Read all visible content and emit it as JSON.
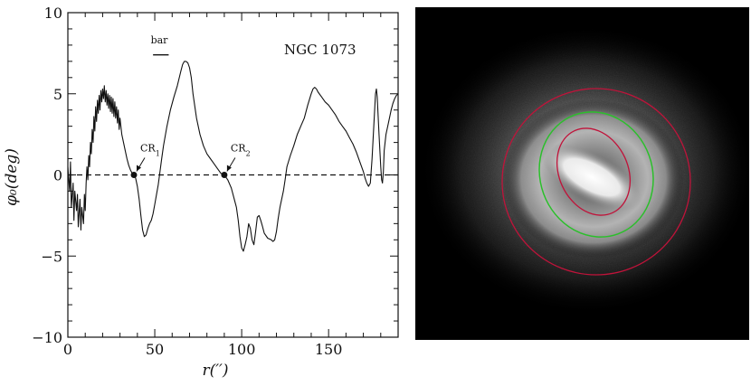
{
  "chart_data": [
    {
      "type": "line",
      "title": "NGC 1073",
      "xlabel": "r(′′)",
      "ylabel": "φ₀(deg)",
      "xlim": [
        0,
        190
      ],
      "ylim": [
        -10,
        10
      ],
      "x_ticks": [
        0,
        50,
        100,
        150
      ],
      "y_ticks": [
        -10,
        -5,
        0,
        5,
        10
      ],
      "x_tick_labels": [
        "0",
        "50",
        "100",
        "150"
      ],
      "y_tick_labels": [
        "−10",
        "−5",
        "0",
        "5",
        "10"
      ],
      "reference_line": {
        "y": 0,
        "style": "dashed"
      },
      "bar_marker": {
        "label": "bar",
        "x_range": [
          49,
          58
        ],
        "y": 7.4
      },
      "annotations": [
        {
          "label": "CR1",
          "main": "CR",
          "sub": "1",
          "x": 38,
          "y": 0
        },
        {
          "label": "CR2",
          "main": "CR",
          "sub": "2",
          "x": 90,
          "y": 0
        }
      ],
      "series": [
        {
          "points": [
            [
              0,
              0.5
            ],
            [
              1,
              -1
            ],
            [
              1.5,
              0.8
            ],
            [
              2,
              -2
            ],
            [
              3,
              -0.5
            ],
            [
              3.5,
              -2.8
            ],
            [
              4,
              -1
            ],
            [
              5,
              -2.2
            ],
            [
              5.5,
              -1.2
            ],
            [
              6,
              -3.2
            ],
            [
              7,
              -1.5
            ],
            [
              7.5,
              -3.4
            ],
            [
              8,
              -2
            ],
            [
              9,
              -3
            ],
            [
              9.5,
              -1.2
            ],
            [
              10,
              -2.2
            ],
            [
              10.5,
              -0.5
            ],
            [
              11,
              0.5
            ],
            [
              11.5,
              -0.3
            ],
            [
              12,
              1.2
            ],
            [
              12.5,
              0.5
            ],
            [
              13,
              2
            ],
            [
              13.5,
              1.3
            ],
            [
              14,
              2.8
            ],
            [
              14.5,
              2
            ],
            [
              15,
              3.6
            ],
            [
              15.5,
              2.7
            ],
            [
              16,
              4.2
            ],
            [
              16.5,
              3.3
            ],
            [
              17,
              4.6
            ],
            [
              17.5,
              3.8
            ],
            [
              18,
              4.9
            ],
            [
              18.5,
              4
            ],
            [
              19,
              5.2
            ],
            [
              19.5,
              4.5
            ],
            [
              20,
              5.3
            ],
            [
              20.5,
              4.7
            ],
            [
              21,
              5.5
            ],
            [
              21.5,
              4.5
            ],
            [
              22,
              5.2
            ],
            [
              22.5,
              4.3
            ],
            [
              23,
              5.0
            ],
            [
              23.5,
              4.1
            ],
            [
              24,
              4.9
            ],
            [
              24.5,
              3.9
            ],
            [
              25,
              4.8
            ],
            [
              25.5,
              3.8
            ],
            [
              26,
              4.7
            ],
            [
              26.5,
              3.6
            ],
            [
              27,
              4.5
            ],
            [
              27.5,
              3.5
            ],
            [
              28,
              4.2
            ],
            [
              28.5,
              3.2
            ],
            [
              29,
              4.0
            ],
            [
              29.5,
              2.8
            ],
            [
              30,
              3.5
            ],
            [
              31,
              2.5
            ],
            [
              32,
              2.0
            ],
            [
              33,
              1.5
            ],
            [
              34,
              1.0
            ],
            [
              35,
              0.6
            ],
            [
              36,
              0.3
            ],
            [
              37,
              0.1
            ],
            [
              38,
              0.0
            ],
            [
              39,
              -0.2
            ],
            [
              40,
              -0.7
            ],
            [
              41,
              -1.5
            ],
            [
              42,
              -2.5
            ],
            [
              43,
              -3.4
            ],
            [
              44,
              -3.8
            ],
            [
              45,
              -3.7
            ],
            [
              46,
              -3.3
            ],
            [
              47,
              -3.0
            ],
            [
              48,
              -2.8
            ],
            [
              49,
              -2.4
            ],
            [
              50,
              -1.8
            ],
            [
              51,
              -1.2
            ],
            [
              52,
              -0.6
            ],
            [
              53,
              0.2
            ],
            [
              54,
              1.0
            ],
            [
              55,
              1.8
            ],
            [
              57,
              3.0
            ],
            [
              59,
              4.0
            ],
            [
              61,
              4.8
            ],
            [
              63,
              5.5
            ],
            [
              65,
              6.4
            ],
            [
              66,
              6.8
            ],
            [
              67,
              7.0
            ],
            [
              68,
              7.0
            ],
            [
              69,
              6.9
            ],
            [
              70,
              6.6
            ],
            [
              71,
              6.0
            ],
            [
              72,
              5.0
            ],
            [
              74,
              3.5
            ],
            [
              76,
              2.5
            ],
            [
              78,
              1.8
            ],
            [
              80,
              1.3
            ],
            [
              82,
              1.0
            ],
            [
              84,
              0.7
            ],
            [
              86,
              0.4
            ],
            [
              88,
              0.1
            ],
            [
              90,
              0.0
            ],
            [
              92,
              -0.3
            ],
            [
              94,
              -0.8
            ],
            [
              95,
              -1.2
            ],
            [
              96,
              -1.6
            ],
            [
              97,
              -2.0
            ],
            [
              98,
              -2.8
            ],
            [
              99,
              -3.8
            ],
            [
              100,
              -4.5
            ],
            [
              101,
              -4.7
            ],
            [
              102,
              -4.3
            ],
            [
              103,
              -3.8
            ],
            [
              104,
              -3.0
            ],
            [
              105,
              -3.3
            ],
            [
              106,
              -4.0
            ],
            [
              107,
              -4.3
            ],
            [
              108,
              -3.5
            ],
            [
              109,
              -2.6
            ],
            [
              110,
              -2.5
            ],
            [
              111,
              -2.8
            ],
            [
              112,
              -3.2
            ],
            [
              113,
              -3.6
            ],
            [
              115,
              -3.9
            ],
            [
              117,
              -4.0
            ],
            [
              118,
              -4.1
            ],
            [
              119,
              -4.0
            ],
            [
              120,
              -3.5
            ],
            [
              121,
              -2.7
            ],
            [
              122,
              -2.0
            ],
            [
              124,
              -1.0
            ],
            [
              125,
              -0.3
            ],
            [
              126,
              0.5
            ],
            [
              128,
              1.2
            ],
            [
              130,
              1.8
            ],
            [
              132,
              2.5
            ],
            [
              134,
              3.0
            ],
            [
              136,
              3.5
            ],
            [
              138,
              4.3
            ],
            [
              140,
              5.0
            ],
            [
              141,
              5.3
            ],
            [
              142,
              5.4
            ],
            [
              143,
              5.3
            ],
            [
              144,
              5.1
            ],
            [
              146,
              4.8
            ],
            [
              148,
              4.5
            ],
            [
              150,
              4.3
            ],
            [
              152,
              4.0
            ],
            [
              154,
              3.7
            ],
            [
              156,
              3.3
            ],
            [
              158,
              3.0
            ],
            [
              160,
              2.7
            ],
            [
              162,
              2.3
            ],
            [
              164,
              1.9
            ],
            [
              166,
              1.4
            ],
            [
              168,
              0.8
            ],
            [
              170,
              0.2
            ],
            [
              171,
              -0.2
            ],
            [
              172,
              -0.5
            ],
            [
              173,
              -0.7
            ],
            [
              174,
              -0.5
            ],
            [
              175,
              1.0
            ],
            [
              176,
              3.0
            ],
            [
              177,
              5.0
            ],
            [
              177.5,
              5.3
            ],
            [
              178,
              4.8
            ],
            [
              179,
              2.5
            ],
            [
              180,
              0.5
            ],
            [
              180.5,
              -0.3
            ],
            [
              181,
              -0.5
            ],
            [
              181.5,
              0.2
            ],
            [
              182,
              1.5
            ],
            [
              183,
              2.5
            ],
            [
              184,
              3.0
            ],
            [
              185,
              3.5
            ],
            [
              186,
              4.0
            ],
            [
              187,
              4.4
            ],
            [
              188,
              4.7
            ],
            [
              189,
              4.9
            ],
            [
              190,
              5.0
            ]
          ]
        }
      ]
    }
  ],
  "image_panel": {
    "background": "#000000",
    "overlay_colors": {
      "outer_ring": "#c0133a",
      "middle_ring": "#2bbf2b",
      "inner_ring": "#c0133a"
    }
  }
}
